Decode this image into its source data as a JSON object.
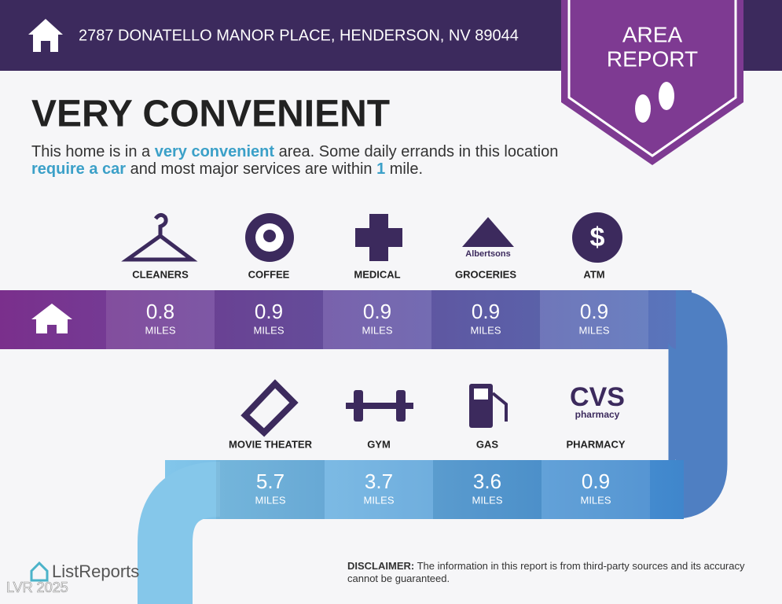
{
  "header": {
    "address": "2787 DONATELLO MANOR PLACE, HENDERSON, NV 89044"
  },
  "badge": {
    "line1": "AREA",
    "line2": "REPORT"
  },
  "headline": "VERY CONVENIENT",
  "description": [
    "This home is in a ",
    "very convenient",
    " area. Some daily errands in this location ",
    "require a car",
    " and most major services are within ",
    "1",
    " mile."
  ],
  "services": [
    {
      "label": "CLEANERS",
      "distance": "0.8",
      "unit": "MILES"
    },
    {
      "label": "COFFEE",
      "distance": "0.9",
      "unit": "MILES"
    },
    {
      "label": "MEDICAL",
      "distance": "0.9",
      "unit": "MILES"
    },
    {
      "label": "GROCERIES",
      "distance": "0.9",
      "unit": "MILES",
      "logo_text": "Albertsons"
    },
    {
      "label": "ATM",
      "distance": "0.9",
      "unit": "MILES",
      "logo_text": "$"
    },
    {
      "label": "MOVIE THEATER",
      "distance": "5.7",
      "unit": "MILES"
    },
    {
      "label": "GYM",
      "distance": "3.7",
      "unit": "MILES"
    },
    {
      "label": "GAS",
      "distance": "3.6",
      "unit": "MILES"
    },
    {
      "label": "PHARMACY",
      "distance": "0.9",
      "unit": "MILES",
      "logo_text": "CVS",
      "logo_subtext": "pharmacy"
    }
  ],
  "footer": {
    "brand": "ListReports",
    "disclaimer_label": "DISCLAIMER:",
    "disclaimer": " The information in this report is from third-party sources and its accuracy cannot be guaranteed.",
    "watermark": "LVR 2025"
  }
}
